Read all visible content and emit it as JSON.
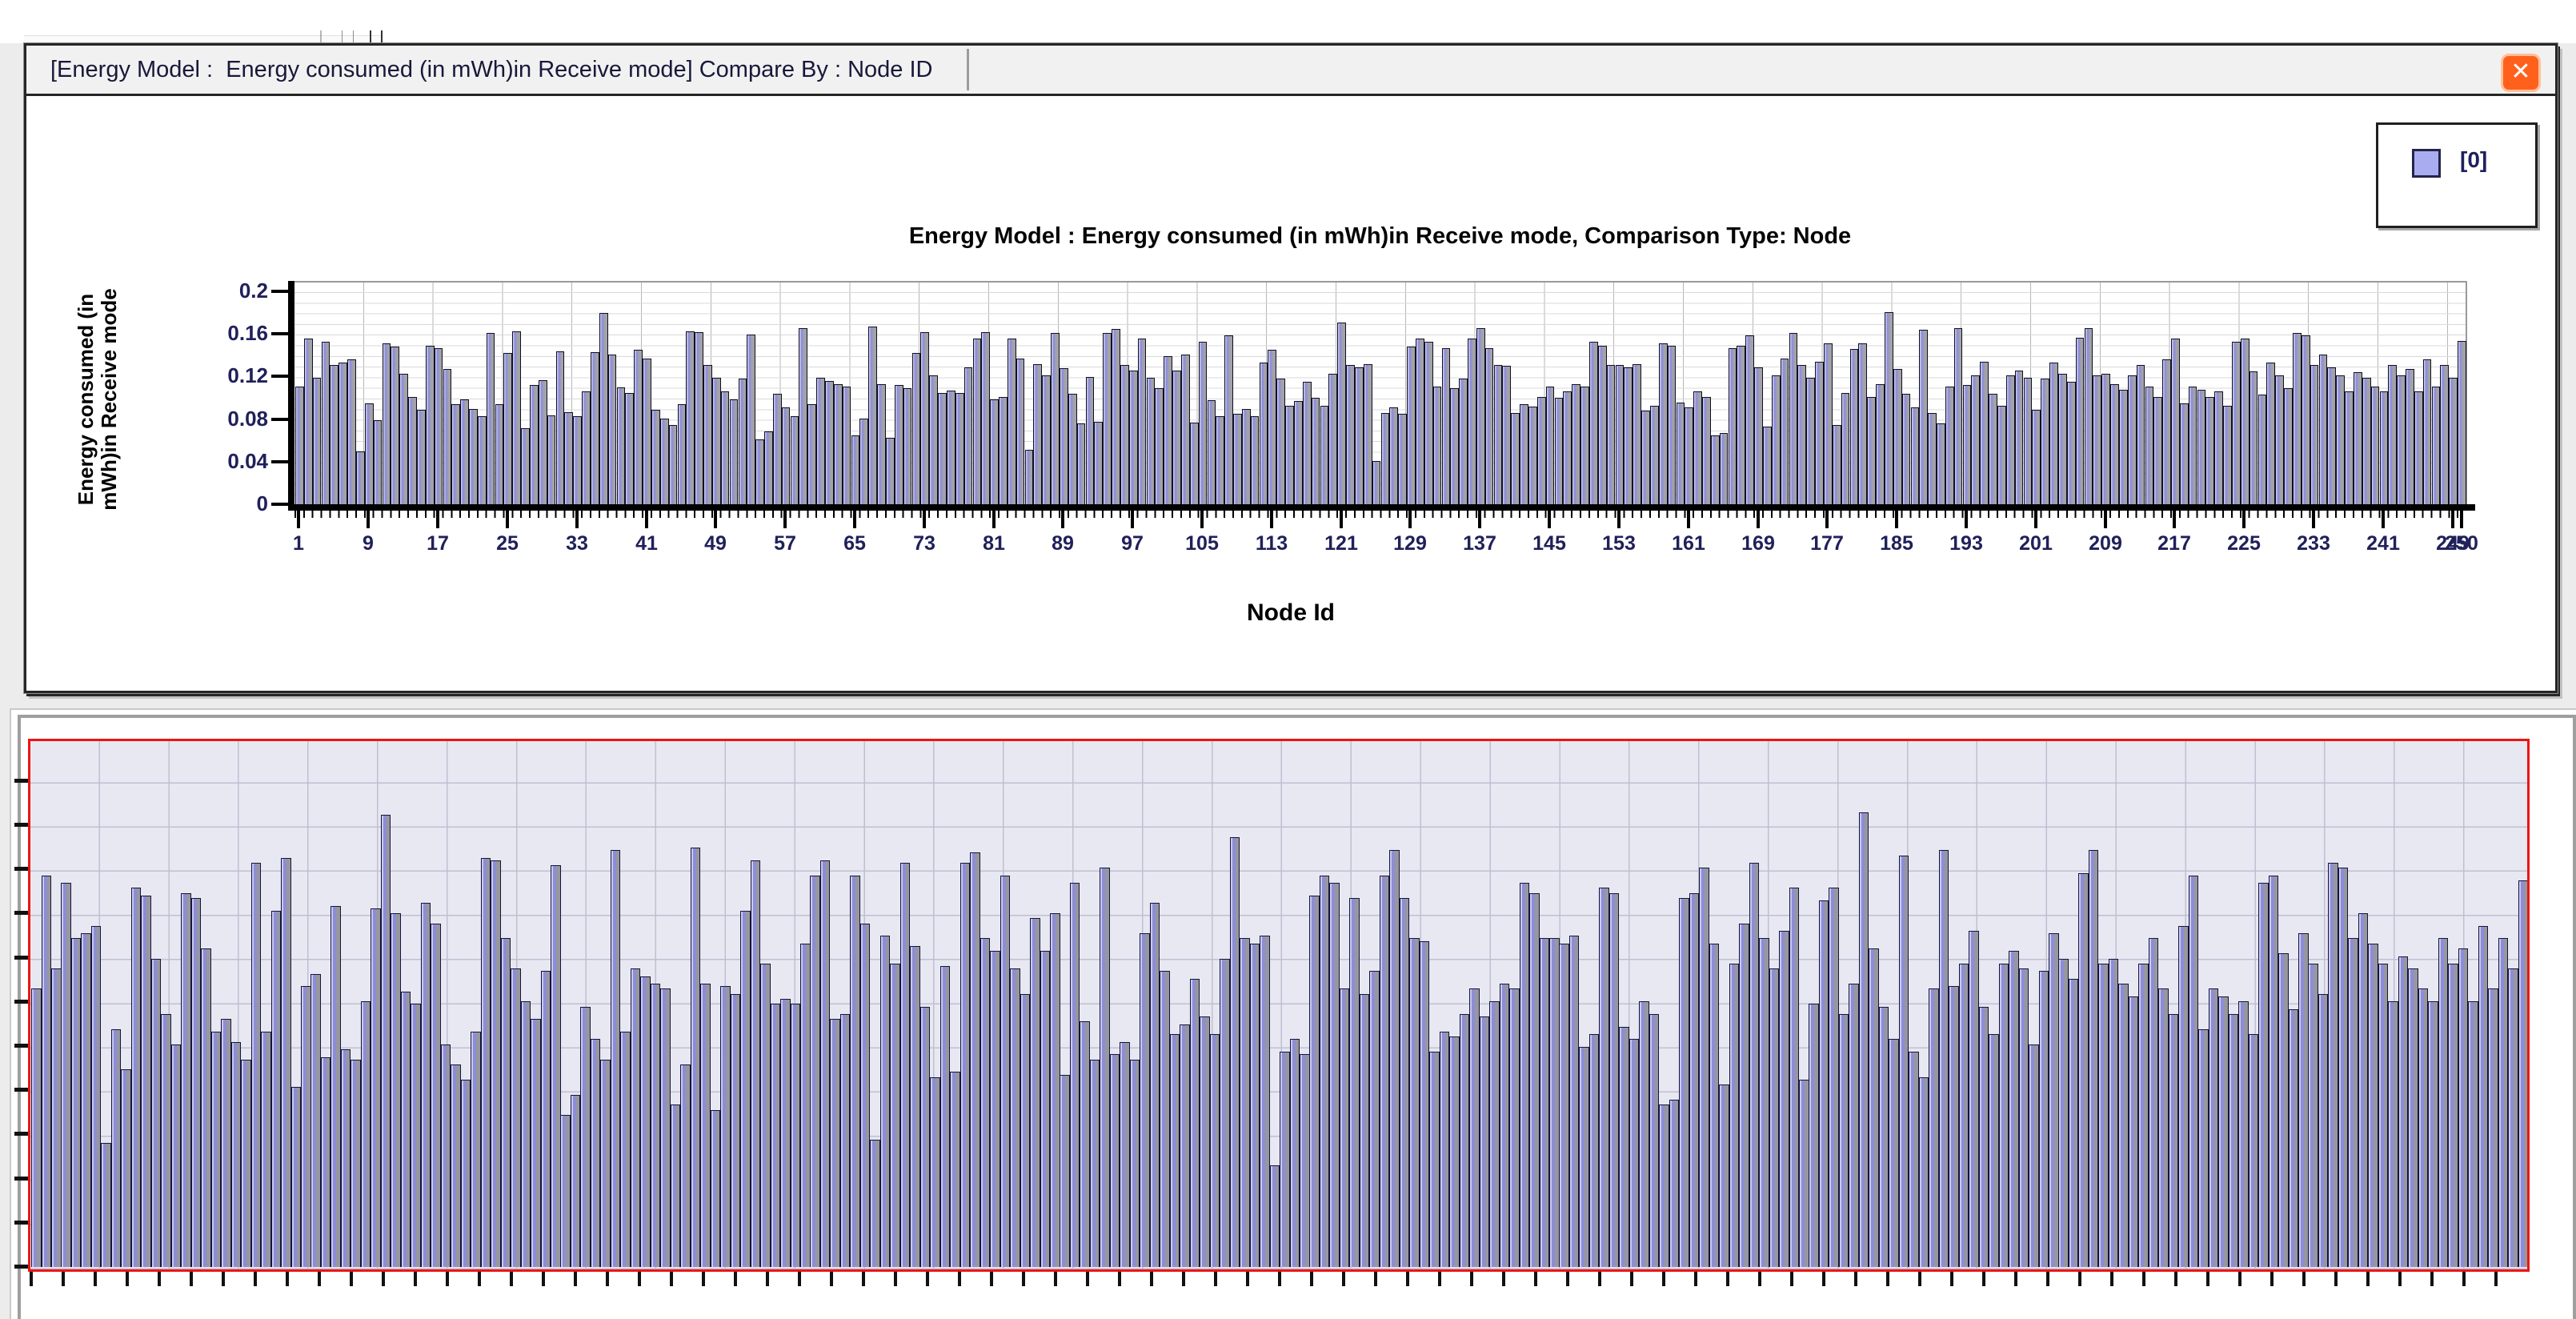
{
  "window": {
    "title": "[Energy Model :  Energy consumed (in mWh)in Receive mode] Compare By : Node ID",
    "close_icon": "✕"
  },
  "legend": {
    "label": "[0]",
    "swatch_color": "#a9adf0",
    "position": "top-right"
  },
  "chart_data": {
    "type": "bar",
    "title": "Energy Model :  Energy consumed (in mWh)in Receive mode, Comparison Type: Node",
    "xlabel": "Node Id",
    "ylabel": "Energy consumed (in mWh)in Receive mode",
    "ylabel_lines": [
      "Energy consumed (in",
      "mWh)in Receive mode"
    ],
    "series_name": "[0]",
    "bar_color": "#9090d8",
    "bar_side_color": "#a2a2a8",
    "ylim": [
      0,
      0.2
    ],
    "grid": true,
    "x_range": [
      1,
      250
    ],
    "y_ticks": [
      0.2,
      0.16,
      0.12,
      0.08,
      0.04,
      0
    ],
    "y_tick_labels": [
      "0.2",
      "0.16",
      "0.12",
      "0.08",
      "0.04",
      "0"
    ],
    "x_tick_nodes": [
      1,
      9,
      17,
      25,
      33,
      41,
      49,
      57,
      65,
      73,
      81,
      89,
      97,
      105,
      113,
      121,
      129,
      137,
      145,
      153,
      161,
      169,
      177,
      185,
      193,
      201,
      209,
      217,
      225,
      233,
      241,
      249,
      250
    ],
    "x_tick_labels": [
      "1",
      "9",
      "17",
      "25",
      "33",
      "41",
      "49",
      "57",
      "65",
      "73",
      "81",
      "89",
      "97",
      "105",
      "113",
      "121",
      "129",
      "137",
      "145",
      "153",
      "161",
      "169",
      "177",
      "185",
      "193",
      "201",
      "209",
      "217",
      "225",
      "233",
      "241",
      "249",
      "250"
    ],
    "values": [
      0.11,
      0.155,
      0.118,
      0.152,
      0.13,
      0.132,
      0.135,
      0.049,
      0.094,
      0.078,
      0.15,
      0.147,
      0.122,
      0.1,
      0.088,
      0.148,
      0.146,
      0.126,
      0.093,
      0.098,
      0.089,
      0.082,
      0.16,
      0.093,
      0.141,
      0.162,
      0.071,
      0.111,
      0.116,
      0.083,
      0.143,
      0.086,
      0.082,
      0.105,
      0.142,
      0.179,
      0.14,
      0.109,
      0.104,
      0.144,
      0.136,
      0.088,
      0.08,
      0.074,
      0.093,
      0.162,
      0.161,
      0.13,
      0.118,
      0.105,
      0.098,
      0.117,
      0.159,
      0.06,
      0.068,
      0.103,
      0.09,
      0.082,
      0.165,
      0.093,
      0.118,
      0.115,
      0.112,
      0.11,
      0.064,
      0.08,
      0.166,
      0.112,
      0.062,
      0.111,
      0.108,
      0.141,
      0.161,
      0.12,
      0.104,
      0.106,
      0.104,
      0.128,
      0.155,
      0.161,
      0.098,
      0.1,
      0.155,
      0.136,
      0.05,
      0.131,
      0.12,
      0.16,
      0.127,
      0.103,
      0.075,
      0.119,
      0.077,
      0.16,
      0.164,
      0.13,
      0.125,
      0.155,
      0.118,
      0.108,
      0.138,
      0.125,
      0.14,
      0.076,
      0.152,
      0.097,
      0.082,
      0.158,
      0.084,
      0.089,
      0.082,
      0.132,
      0.144,
      0.117,
      0.092,
      0.096,
      0.114,
      0.099,
      0.092,
      0.122,
      0.17,
      0.13,
      0.128,
      0.131,
      0.04,
      0.085,
      0.09,
      0.084,
      0.147,
      0.155,
      0.152,
      0.11,
      0.146,
      0.108,
      0.117,
      0.155,
      0.165,
      0.146,
      0.13,
      0.129,
      0.085,
      0.093,
      0.091,
      0.1,
      0.11,
      0.099,
      0.105,
      0.112,
      0.11,
      0.152,
      0.148,
      0.13,
      0.13,
      0.128,
      0.131,
      0.087,
      0.092,
      0.15,
      0.148,
      0.095,
      0.09,
      0.105,
      0.1,
      0.064,
      0.066,
      0.146,
      0.148,
      0.158,
      0.128,
      0.072,
      0.12,
      0.136,
      0.16,
      0.13,
      0.118,
      0.133,
      0.15,
      0.074,
      0.104,
      0.145,
      0.15,
      0.1,
      0.112,
      0.18,
      0.126,
      0.103,
      0.09,
      0.163,
      0.085,
      0.075,
      0.11,
      0.165,
      0.111,
      0.12,
      0.133,
      0.103,
      0.092,
      0.12,
      0.125,
      0.118,
      0.088,
      0.117,
      0.132,
      0.122,
      0.114,
      0.156,
      0.165,
      0.12,
      0.122,
      0.112,
      0.107,
      0.12,
      0.13,
      0.11,
      0.1,
      0.135,
      0.155,
      0.094,
      0.11,
      0.107,
      0.1,
      0.105,
      0.092,
      0.152,
      0.155,
      0.124,
      0.102,
      0.132,
      0.12,
      0.108,
      0.16,
      0.158,
      0.13,
      0.14,
      0.128,
      0.12,
      0.105,
      0.123,
      0.118,
      0.11,
      0.105,
      0.13,
      0.12,
      0.126,
      0.105,
      0.135,
      0.11,
      0.13,
      0.118,
      0.153
    ]
  },
  "preview_panel": {
    "border_color": "#ee1414",
    "background_color": "#e8e8f3",
    "shows": "same series zoom preview"
  }
}
